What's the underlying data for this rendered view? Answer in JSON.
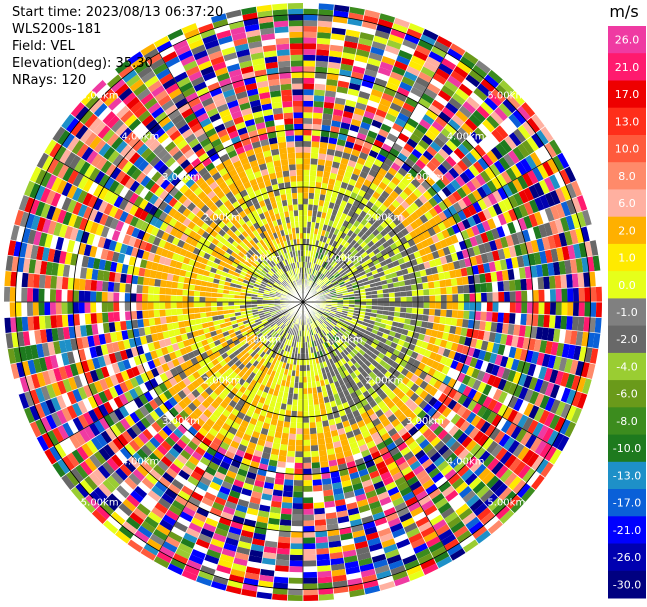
{
  "header": {
    "start_time": "Start time: 2023/08/13 06:37:20",
    "instrument": "WLS200s-181",
    "field": "Field: VEL",
    "elevation": "Elevation(deg): 35.30",
    "nrays": "NRays: 120"
  },
  "chart_data": {
    "type": "heatmap",
    "subtype": "ppi-polar",
    "title": "",
    "n_rays": 120,
    "elevation_deg": 35.3,
    "field": "VEL",
    "range_rings_km": [
      1.0,
      2.0,
      3.0,
      4.0,
      5.0
    ],
    "max_range_km": 5.2,
    "ring_label": "0.00km",
    "ring_labels_upper": [
      "1.00km",
      "2.00km",
      "3.00km",
      "4.00km",
      "5.00km"
    ],
    "ring_labels_lower": [
      "1.00km",
      "2.00km",
      "3.00km",
      "4.00km",
      "5.00km"
    ],
    "radial_lines_deg": [
      0,
      30,
      60,
      90,
      120,
      150,
      180,
      210,
      240,
      270,
      300,
      330
    ],
    "value_zones_km": [
      {
        "from": 0.0,
        "to": 1.0,
        "dominant": [
          -2.0,
          0.0,
          -4.0
        ]
      },
      {
        "from": 1.0,
        "to": 2.2,
        "dominant": [
          0.0,
          -2.0,
          2.0
        ]
      },
      {
        "from": 2.2,
        "to": 2.8,
        "dominant": [
          2.0,
          0.0,
          -2.0
        ]
      },
      {
        "from": 2.8,
        "to": 5.2,
        "dominant": "noise"
      }
    ],
    "colorbar": {
      "unit": "m/s",
      "vmin": -30.0,
      "vmax": 30.0,
      "tick_labels": [
        "26.0",
        "21.0",
        "17.0",
        "13.0",
        "10.0",
        "8.0",
        "6.0",
        "2.0",
        "1.0",
        "0.0",
        "-1.0",
        "-2.0",
        "-4.0",
        "-6.0",
        "-8.0",
        "-10.0",
        "-13.0",
        "-17.0",
        "-21.0",
        "-26.0",
        "-30.0"
      ],
      "colors": [
        "#ef3aa2",
        "#ff1a6e",
        "#ee0000",
        "#ff2e1a",
        "#ff5a3c",
        "#ff8a6a",
        "#ffb0a0",
        "#ffb000",
        "#ffea00",
        "#e6ff1a",
        "#808080",
        "#686868",
        "#9acd32",
        "#6a9a1a",
        "#3c8c1e",
        "#1e7a1e",
        "#1e90c8",
        "#0a60d8",
        "#0000ff",
        "#0000b0",
        "#000080",
        "#191970"
      ]
    }
  }
}
